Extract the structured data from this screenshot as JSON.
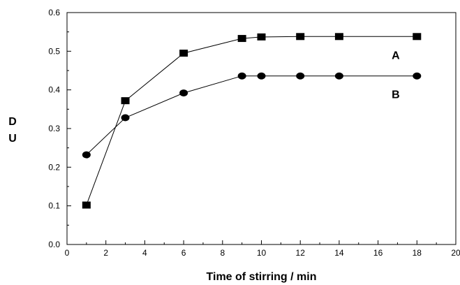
{
  "chart_data": {
    "type": "line",
    "title": "",
    "xlabel": "Time of stirring / min",
    "ylabel_line1": "D",
    "ylabel_line2": "U",
    "xlim": [
      0,
      20
    ],
    "ylim": [
      0.0,
      0.6
    ],
    "x_ticks": [
      "0",
      "2",
      "4",
      "6",
      "8",
      "10",
      "12",
      "14",
      "16",
      "18",
      "20"
    ],
    "y_ticks": [
      "0.0",
      "0.1",
      "0.2",
      "0.3",
      "0.4",
      "0.5",
      "0.6"
    ],
    "grid": false,
    "series": [
      {
        "name": "A",
        "marker": "square",
        "x": [
          1,
          3,
          6,
          9,
          10,
          12,
          14,
          18
        ],
        "y": [
          0.102,
          0.372,
          0.495,
          0.533,
          0.537,
          0.538,
          0.538,
          0.538
        ]
      },
      {
        "name": "B",
        "marker": "circle",
        "x": [
          1,
          3,
          6,
          9,
          10,
          12,
          14,
          18
        ],
        "y": [
          0.232,
          0.328,
          0.392,
          0.436,
          0.436,
          0.436,
          0.436,
          0.436
        ]
      }
    ]
  }
}
